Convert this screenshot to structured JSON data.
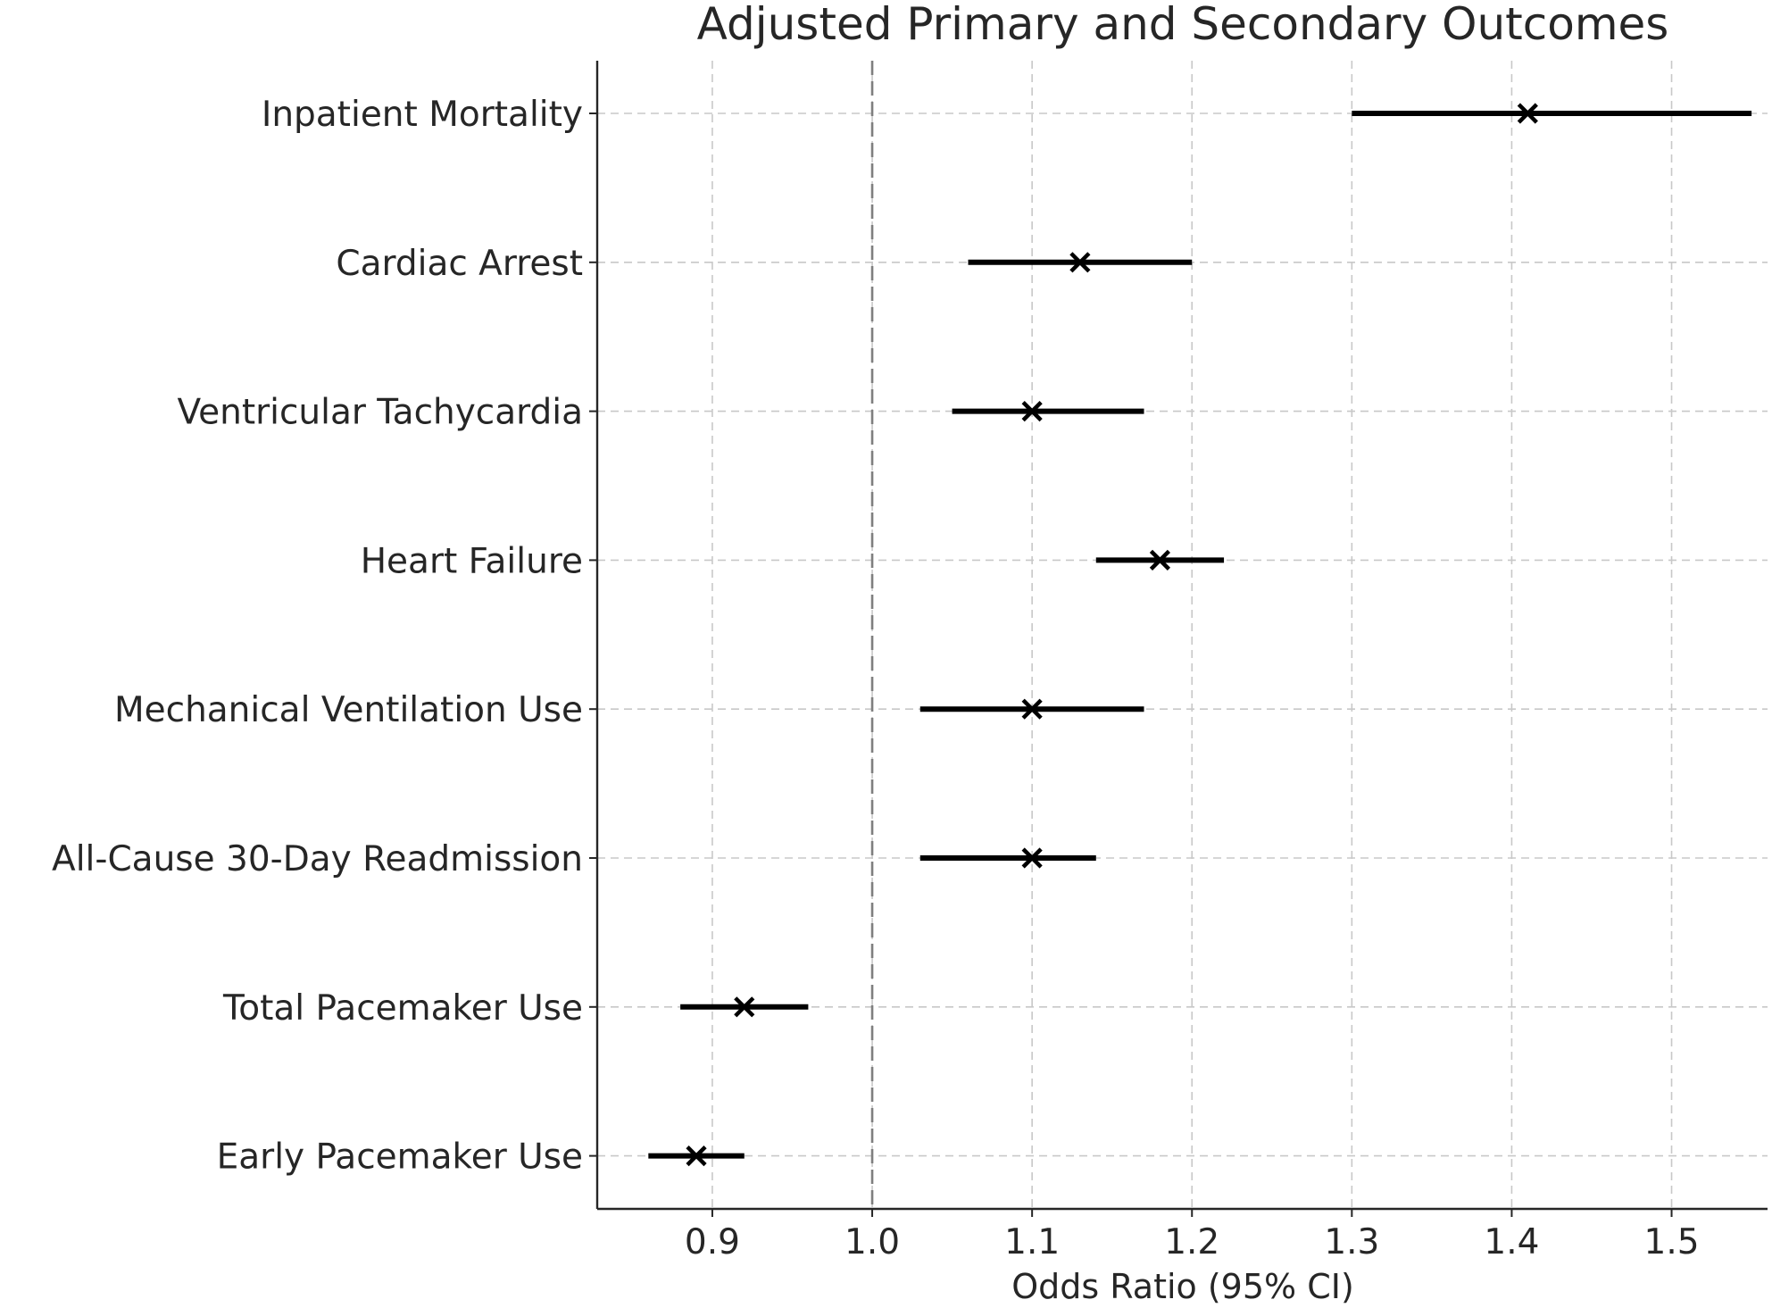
{
  "chart_data": {
    "type": "forest",
    "title": "Adjusted Primary and Secondary Outcomes",
    "xlabel": "Odds Ratio (95% CI)",
    "ylabel": "",
    "xlim": [
      0.828,
      1.56
    ],
    "xticks": [
      0.9,
      1.0,
      1.1,
      1.2,
      1.3,
      1.4,
      1.5
    ],
    "xtick_labels": [
      "0.9",
      "1.0",
      "1.1",
      "1.2",
      "1.3",
      "1.4",
      "1.5"
    ],
    "reference_line": 1.0,
    "grid": true,
    "marker": "x",
    "color": "#000000",
    "outcomes": [
      {
        "label": "Inpatient Mortality",
        "or": 1.41,
        "ci_low": 1.3,
        "ci_high": 1.55
      },
      {
        "label": "Cardiac Arrest",
        "or": 1.13,
        "ci_low": 1.06,
        "ci_high": 1.2
      },
      {
        "label": "Ventricular Tachycardia",
        "or": 1.1,
        "ci_low": 1.05,
        "ci_high": 1.17
      },
      {
        "label": "Heart Failure",
        "or": 1.18,
        "ci_low": 1.14,
        "ci_high": 1.22
      },
      {
        "label": "Mechanical Ventilation Use",
        "or": 1.1,
        "ci_low": 1.03,
        "ci_high": 1.17
      },
      {
        "label": "All-Cause 30-Day Readmission",
        "or": 1.1,
        "ci_low": 1.03,
        "ci_high": 1.14
      },
      {
        "label": "Total Pacemaker Use",
        "or": 0.92,
        "ci_low": 0.88,
        "ci_high": 0.96
      },
      {
        "label": "Early Pacemaker Use",
        "or": 0.89,
        "ci_low": 0.86,
        "ci_high": 0.92
      }
    ]
  }
}
